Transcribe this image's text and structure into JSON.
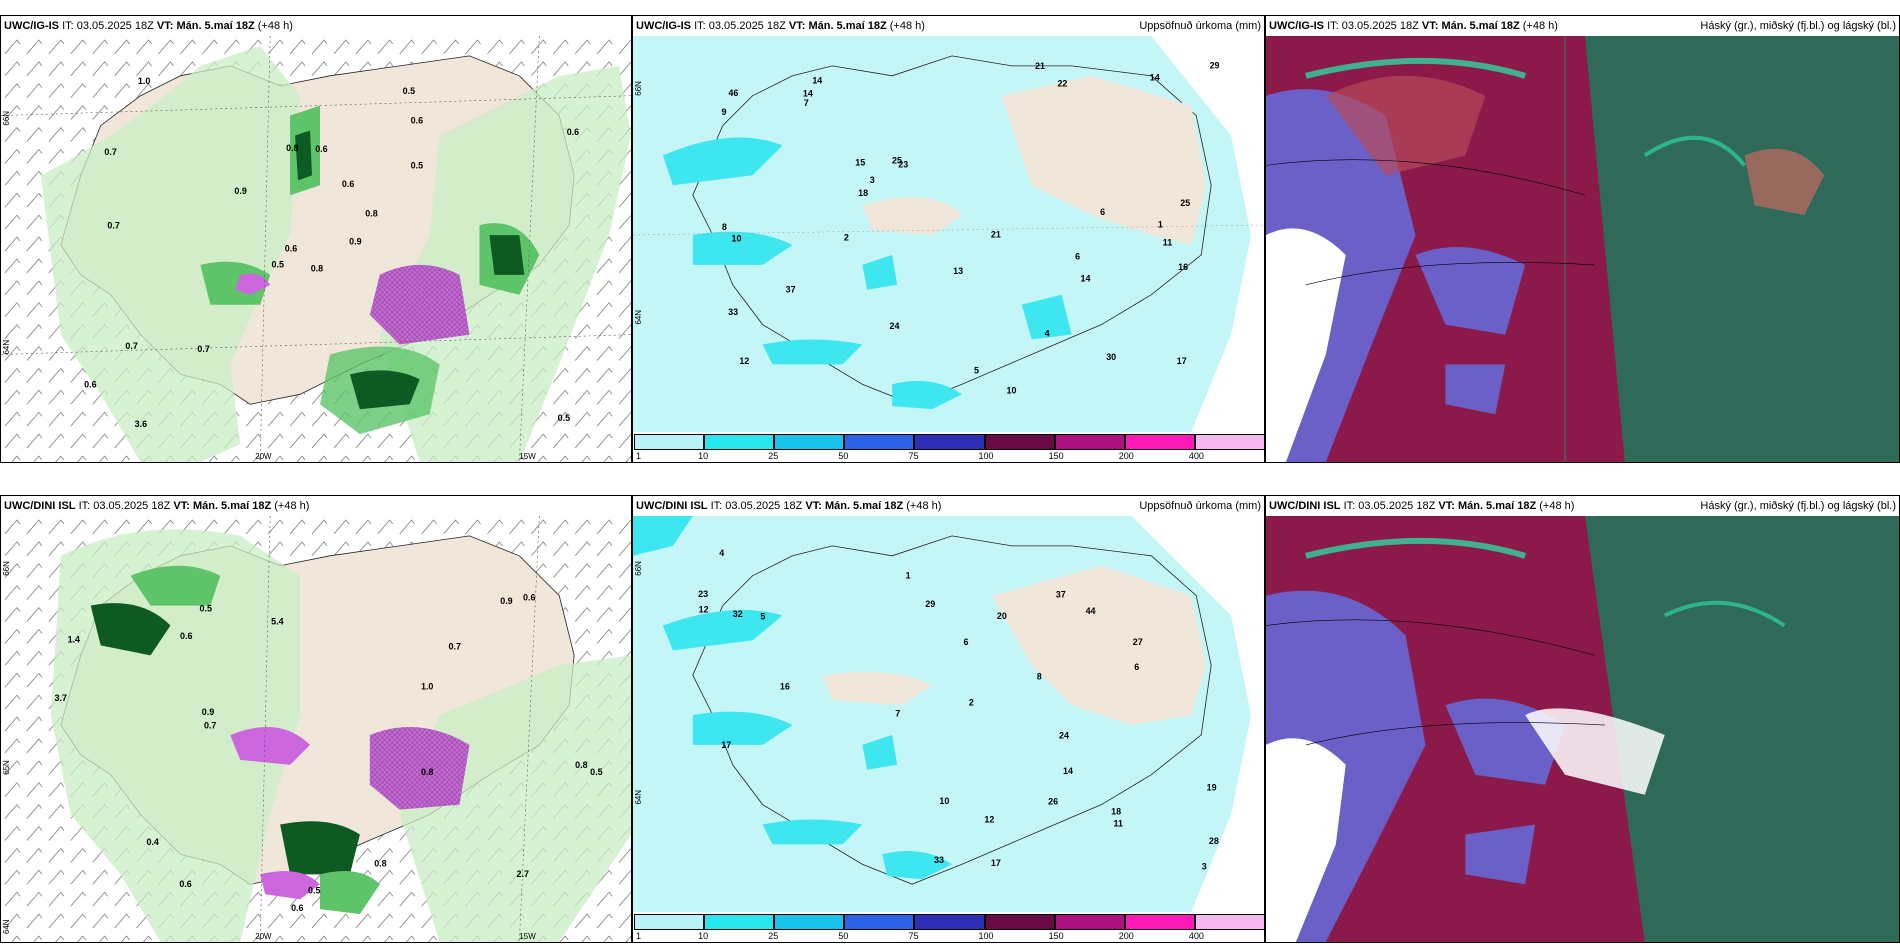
{
  "panels": [
    {
      "model": "UWC/IG-IS",
      "it_label": "IT:",
      "it": "03.05.2025 18Z",
      "vt_label": "VT: Mán. 5.maí 18Z",
      "lead": "(+48 h)",
      "right_title": ""
    },
    {
      "model": "UWC/IG-IS",
      "it_label": "IT:",
      "it": "03.05.2025 18Z",
      "vt_label": "VT: Mán. 5.maí 18Z",
      "lead": "(+48 h)",
      "right_title": "Uppsöfnuð úrkoma (mm)"
    },
    {
      "model": "UWC/IG-IS",
      "it_label": "IT:",
      "it": "03.05.2025 18Z",
      "vt_label": "VT: Mán. 5.maí 18Z",
      "lead": "(+48 h)",
      "right_title": "Háský (gr.), miðský (fj.bl.) og lágský (bl.)"
    },
    {
      "model": "UWC/DINI ISL",
      "it_label": "IT:",
      "it": "03.05.2025 18Z",
      "vt_label": "VT: Mán. 5.maí 18Z",
      "lead": "(+48 h)",
      "right_title": ""
    },
    {
      "model": "UWC/DINI ISL",
      "it_label": "IT:",
      "it": "03.05.2025 18Z",
      "vt_label": "VT: Mán. 5.maí 18Z",
      "lead": "(+48 h)",
      "right_title": "Uppsöfnuð úrkoma (mm)"
    },
    {
      "model": "UWC/DINI ISL",
      "it_label": "IT:",
      "it": "03.05.2025 18Z",
      "vt_label": "VT: Mán. 5.maí 18Z",
      "lead": "(+48 h)",
      "right_title": "Háský (gr.), miðský (fj.bl.) og lágský (bl.)"
    }
  ],
  "axis_labels": {
    "lat66": "66N",
    "lat64": "64N",
    "lat65": "65N",
    "lon20": "20W",
    "lon15": "15W"
  },
  "colorbar": {
    "ticks": [
      "1",
      "10",
      "25",
      "50",
      "75",
      "100",
      "150",
      "200",
      "400"
    ],
    "colors": [
      "#b8f4f7",
      "#27e6ee",
      "#17c3ea",
      "#2e62e6",
      "#2f2fb5",
      "#6a0a45",
      "#aa1280",
      "#ff1ab8",
      "#f7b8f0"
    ]
  },
  "colors": {
    "land": "#f1e6da",
    "sea": "#ffffff",
    "precip_light": "#c4f6f8",
    "precip_mid": "#3ee6f0",
    "green_light": "#c8eec4",
    "green_mid": "#5ec46a",
    "green_dark": "#0d5a22",
    "magenta": "#cc66dd",
    "cloud_high": "#2f6a58",
    "cloud_mid": "#8b1a4a",
    "cloud_low": "#6a60c8"
  },
  "precip_labels_top": [
    "0.8",
    "0.7",
    "0.6",
    "0.6",
    "0.8",
    "0.7",
    "0.5",
    "0.6",
    "0.6",
    "0.9",
    "1.0",
    "0.5",
    "0.7",
    "0.6",
    "0.5",
    "0.5",
    "3.6",
    "0.8",
    "0.6",
    "0.7",
    "0.9"
  ],
  "precip_labels_bottom": [
    "1.4",
    "0.6",
    "1.0",
    "0.5",
    "0.9",
    "0.6",
    "0.8",
    "0.7",
    "0.6",
    "0.5",
    "0.8",
    "0.5",
    "0.7",
    "0.4",
    "3.7",
    "0.6",
    "0.9",
    "5.4",
    "2.7",
    "0.8"
  ],
  "acc_labels_top": [
    "6",
    "11",
    "12",
    "14",
    "23",
    "30",
    "33",
    "22",
    "15",
    "10",
    "9",
    "8",
    "46",
    "17",
    "24",
    "25",
    "13",
    "21",
    "25",
    "37",
    "29",
    "14",
    "18",
    "16",
    "21",
    "14",
    "14",
    "10",
    "7",
    "6",
    "5",
    "4",
    "3",
    "2",
    "1"
  ],
  "acc_labels_bottom": [
    "6",
    "11",
    "23",
    "27",
    "33",
    "29",
    "17",
    "37",
    "16",
    "17",
    "18",
    "20",
    "24",
    "32",
    "28",
    "44",
    "19",
    "26",
    "12",
    "14",
    "12",
    "10",
    "8",
    "7",
    "6",
    "5",
    "4",
    "3",
    "2",
    "1"
  ]
}
